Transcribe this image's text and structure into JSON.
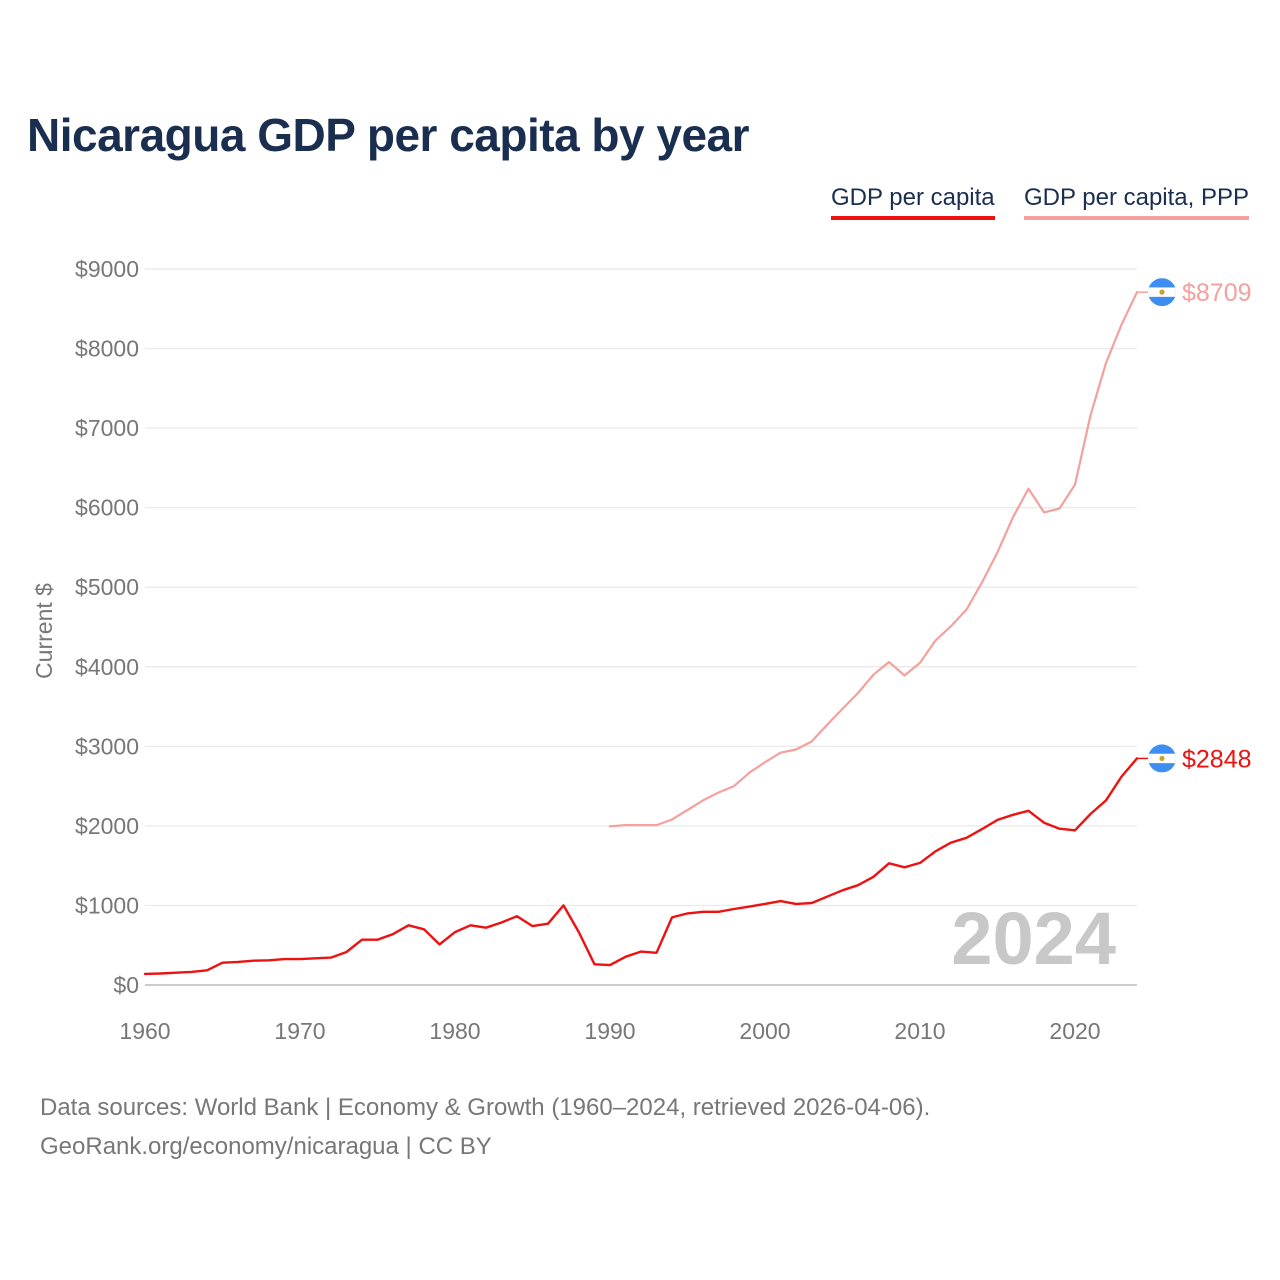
{
  "title": "Nicaragua GDP per capita by year",
  "legend": {
    "gdp_label": "GDP per capita",
    "ppp_label": "GDP per capita, PPP"
  },
  "colors": {
    "gdp": "#ee1111",
    "ppp": "#f4a09c",
    "title": "#1a2e4f",
    "axis_text": "#777777",
    "watermark": "#c8c8c8",
    "flag_blue": "#3d8ef0"
  },
  "source": {
    "line1": "Data sources: World Bank | Economy & Growth (1960–2024, retrieved 2026-04-06).",
    "line2": "GeoRank.org/economy/nicaragua | CC BY"
  },
  "chart_data": {
    "type": "line",
    "title": "Nicaragua GDP per capita by year",
    "xlabel": "",
    "ylabel": "Current $",
    "xlim": [
      1960,
      2024
    ],
    "ylim": [
      0,
      9000
    ],
    "x_ticks": [
      "1960",
      "1970",
      "1980",
      "1990",
      "2000",
      "2010",
      "2020"
    ],
    "y_ticks": [
      "$0",
      "$1000",
      "$2000",
      "$3000",
      "$4000",
      "$5000",
      "$6000",
      "$7000",
      "$8000",
      "$9000"
    ],
    "grid": true,
    "year_watermark": "2024",
    "series": [
      {
        "name": "GDP per capita",
        "color": "#ee1111",
        "end_label": "$2848",
        "x": [
          1960,
          1961,
          1962,
          1963,
          1964,
          1965,
          1966,
          1967,
          1968,
          1969,
          1970,
          1971,
          1972,
          1973,
          1974,
          1975,
          1976,
          1977,
          1978,
          1979,
          1980,
          1981,
          1982,
          1983,
          1984,
          1985,
          1986,
          1987,
          1988,
          1989,
          1990,
          1991,
          1992,
          1993,
          1994,
          1995,
          1996,
          1997,
          1998,
          1999,
          2000,
          2001,
          2002,
          2003,
          2004,
          2005,
          2006,
          2007,
          2008,
          2009,
          2010,
          2011,
          2012,
          2013,
          2014,
          2015,
          2016,
          2017,
          2018,
          2019,
          2020,
          2021,
          2022,
          2023,
          2024
        ],
        "values": [
          140,
          145,
          155,
          165,
          185,
          280,
          290,
          305,
          310,
          325,
          325,
          335,
          345,
          415,
          570,
          570,
          640,
          750,
          700,
          510,
          665,
          750,
          720,
          785,
          865,
          740,
          770,
          1000,
          660,
          260,
          250,
          355,
          420,
          405,
          850,
          900,
          920,
          920,
          955,
          985,
          1020,
          1055,
          1020,
          1030,
          1110,
          1190,
          1255,
          1360,
          1530,
          1480,
          1535,
          1680,
          1790,
          1850,
          1960,
          2075,
          2140,
          2190,
          2040,
          1965,
          1945,
          2150,
          2320,
          2620,
          2848
        ]
      },
      {
        "name": "GDP per capita, PPP",
        "color": "#f4a09c",
        "end_label": "$8709",
        "x": [
          1990,
          1991,
          1992,
          1993,
          1994,
          1995,
          1996,
          1997,
          1998,
          1999,
          2000,
          2001,
          2002,
          2003,
          2004,
          2005,
          2006,
          2007,
          2008,
          2009,
          2010,
          2011,
          2012,
          2013,
          2014,
          2015,
          2016,
          2017,
          2018,
          2019,
          2020,
          2021,
          2022,
          2023,
          2024
        ],
        "values": [
          1995,
          2010,
          2010,
          2010,
          2080,
          2200,
          2320,
          2420,
          2500,
          2670,
          2800,
          2920,
          2960,
          3060,
          3270,
          3470,
          3670,
          3900,
          4060,
          3890,
          4050,
          4330,
          4510,
          4720,
          5060,
          5440,
          5880,
          6240,
          5940,
          5990,
          6290,
          7160,
          7820,
          8300,
          8709
        ]
      }
    ]
  }
}
